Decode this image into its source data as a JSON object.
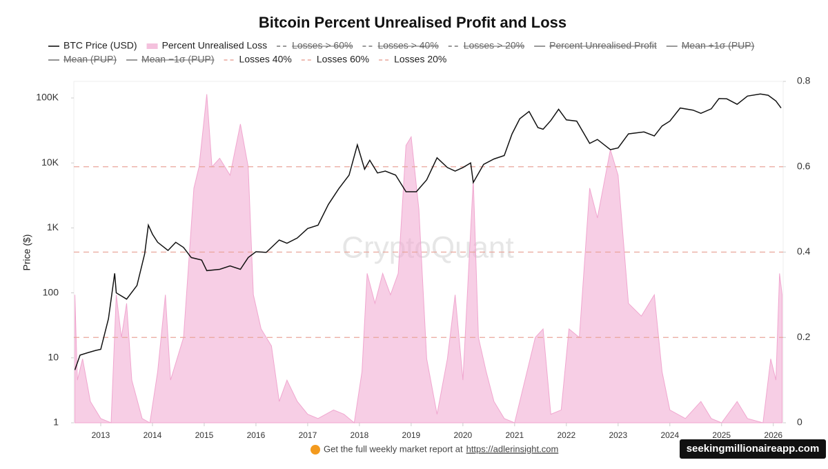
{
  "chart_data": {
    "type": "line",
    "title": "Bitcoin Percent Unrealised Profit and Loss",
    "y_label": "Price ($)",
    "watermark": "CryptoQuant",
    "footer": "Get the full weekly market report at",
    "footer_link": "https://adlerinsight.com",
    "badge": "seekingmillionaireapp.com",
    "xlim": [
      2012.48,
      2026.19
    ],
    "xticks": [
      2013,
      2014,
      2015,
      2016,
      2017,
      2018,
      2019,
      2020,
      2021,
      2022,
      2023,
      2024,
      2025,
      2026
    ],
    "ylim": [
      1,
      180000
    ],
    "log_y": true,
    "yticks": [
      1,
      10,
      100,
      {
        "value": 1000,
        "label": "1K"
      },
      {
        "value": 10000,
        "label": "10K"
      },
      {
        "value": 100000,
        "label": "100K"
      }
    ],
    "y2lim": [
      0,
      0.8
    ],
    "y2ticks": [
      0,
      0.2,
      0.4,
      0.6,
      0.8
    ],
    "series": [
      {
        "name": "BTC Price (USD)",
        "color": "#111111",
        "style": "line",
        "x": [
          2012.5,
          2012.6,
          2012.75,
          2012.9,
          2013.0,
          2013.15,
          2013.27,
          2013.3,
          2013.5,
          2013.7,
          2013.85,
          2013.92,
          2014.0,
          2014.1,
          2014.3,
          2014.45,
          2014.6,
          2014.75,
          2014.95,
          2015.05,
          2015.3,
          2015.5,
          2015.7,
          2015.85,
          2016.0,
          2016.2,
          2016.45,
          2016.6,
          2016.8,
          2017.0,
          2017.2,
          2017.4,
          2017.6,
          2017.8,
          2017.96,
          2018.1,
          2018.2,
          2018.35,
          2018.5,
          2018.7,
          2018.9,
          2019.1,
          2019.3,
          2019.5,
          2019.7,
          2019.85,
          2020.0,
          2020.15,
          2020.2,
          2020.4,
          2020.6,
          2020.8,
          2020.95,
          2021.1,
          2021.28,
          2021.45,
          2021.55,
          2021.7,
          2021.85,
          2022.0,
          2022.2,
          2022.45,
          2022.6,
          2022.85,
          2023.0,
          2023.2,
          2023.5,
          2023.7,
          2023.85,
          2024.0,
          2024.2,
          2024.45,
          2024.6,
          2024.8,
          2024.95,
          2025.1,
          2025.3,
          2025.5,
          2025.75,
          2025.9,
          2026.05,
          2026.15
        ],
        "values": [
          6.5,
          11,
          12,
          13,
          13.5,
          40,
          200,
          100,
          80,
          130,
          400,
          1100,
          800,
          600,
          450,
          600,
          500,
          350,
          320,
          220,
          230,
          260,
          230,
          350,
          430,
          420,
          650,
          580,
          700,
          980,
          1100,
          2300,
          4000,
          6500,
          19000,
          8000,
          11000,
          7000,
          7500,
          6500,
          3600,
          3600,
          5500,
          12000,
          8500,
          7500,
          8500,
          10000,
          5000,
          9500,
          11500,
          13000,
          28000,
          48000,
          62000,
          35000,
          33000,
          45000,
          67000,
          46000,
          44000,
          20000,
          23000,
          16000,
          17000,
          28000,
          30000,
          26000,
          37000,
          44000,
          70000,
          65000,
          58000,
          68000,
          98000,
          97000,
          80000,
          107000,
          115000,
          110000,
          90000,
          70000
        ]
      },
      {
        "name": "Percent Unrealised Loss",
        "color": "#f0a6cf",
        "style": "area",
        "axis": "y2",
        "x": [
          2012.5,
          2012.55,
          2012.65,
          2012.8,
          2013.0,
          2013.2,
          2013.3,
          2013.4,
          2013.5,
          2013.6,
          2013.8,
          2013.95,
          2014.1,
          2014.25,
          2014.35,
          2014.6,
          2014.8,
          2014.9,
          2015.05,
          2015.15,
          2015.3,
          2015.5,
          2015.7,
          2015.85,
          2015.95,
          2016.1,
          2016.3,
          2016.45,
          2016.6,
          2016.8,
          2017.0,
          2017.2,
          2017.5,
          2017.7,
          2017.9,
          2018.05,
          2018.15,
          2018.3,
          2018.45,
          2018.6,
          2018.75,
          2018.9,
          2019.0,
          2019.15,
          2019.3,
          2019.5,
          2019.7,
          2019.85,
          2020.0,
          2020.2,
          2020.3,
          2020.45,
          2020.6,
          2020.8,
          2021.0,
          2021.4,
          2021.55,
          2021.7,
          2021.9,
          2022.05,
          2022.25,
          2022.45,
          2022.6,
          2022.85,
          2023.0,
          2023.2,
          2023.45,
          2023.7,
          2023.85,
          2024.0,
          2024.3,
          2024.6,
          2024.8,
          2025.0,
          2025.3,
          2025.5,
          2025.8,
          2025.95,
          2026.05,
          2026.12,
          2026.17
        ],
        "values": [
          0.3,
          0.1,
          0.15,
          0.05,
          0.01,
          0,
          0.3,
          0.2,
          0.28,
          0.1,
          0.01,
          0,
          0.12,
          0.3,
          0.1,
          0.2,
          0.55,
          0.6,
          0.77,
          0.6,
          0.62,
          0.58,
          0.7,
          0.6,
          0.3,
          0.22,
          0.18,
          0.05,
          0.1,
          0.05,
          0.02,
          0.01,
          0.03,
          0.02,
          0,
          0.12,
          0.35,
          0.28,
          0.35,
          0.3,
          0.35,
          0.65,
          0.67,
          0.5,
          0.15,
          0.02,
          0.15,
          0.3,
          0.1,
          0.57,
          0.2,
          0.12,
          0.05,
          0.01,
          0,
          0.2,
          0.22,
          0.02,
          0.03,
          0.22,
          0.2,
          0.55,
          0.48,
          0.64,
          0.58,
          0.28,
          0.25,
          0.3,
          0.12,
          0.03,
          0.01,
          0.05,
          0.01,
          0,
          0.05,
          0.01,
          0,
          0.15,
          0.1,
          0.35,
          0.3
        ]
      }
    ],
    "hidden_series": [
      {
        "name": "Losses > 60%",
        "style": "dashed"
      },
      {
        "name": "Losses > 40%",
        "style": "dashed"
      },
      {
        "name": "Losses > 20%",
        "style": "dashed"
      },
      {
        "name": "Percent Unrealised Profit",
        "style": "solid"
      },
      {
        "name": "Mean +1σ (PUP)",
        "style": "solid"
      },
      {
        "name": "Mean (PUP)",
        "style": "solid"
      },
      {
        "name": "Mean −1σ (PUP)",
        "style": "solid"
      }
    ],
    "reference_lines": [
      {
        "name": "Losses 40%",
        "value": 0.4,
        "color": "#e9a59a",
        "axis": "y2"
      },
      {
        "name": "Losses 60%",
        "value": 0.6,
        "color": "#e9a59a",
        "axis": "y2"
      },
      {
        "name": "Losses 20%",
        "value": 0.2,
        "color": "#e9a59a",
        "axis": "y2"
      }
    ]
  }
}
